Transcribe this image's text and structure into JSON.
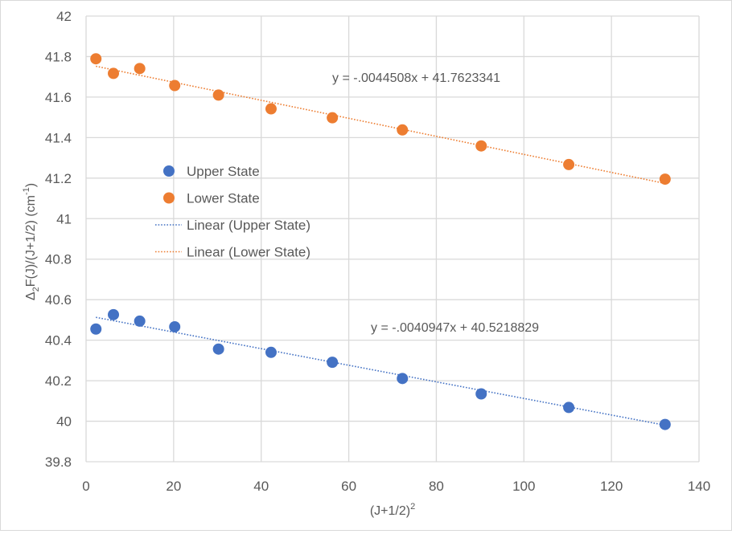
{
  "chart_data": {
    "type": "scatter",
    "xlabel": "(J+1/2)",
    "xlabel_sup": "2",
    "ylabel": "Δ",
    "ylabel_sub": "2",
    "ylabel_main": "F(J)/(J+1/2)  (cm",
    "ylabel_sup": "-1",
    "ylabel_end": ")",
    "xlim": [
      0,
      140
    ],
    "ylim": [
      39.8,
      42
    ],
    "xticks": [
      0,
      20,
      40,
      60,
      80,
      100,
      120,
      140
    ],
    "yticks": [
      39.8,
      40,
      40.2,
      40.4,
      40.6,
      40.8,
      41,
      41.2,
      41.4,
      41.6,
      41.8,
      42
    ],
    "ytick_labels": [
      "39.8",
      "40",
      "40.2",
      "40.4",
      "40.6",
      "40.8",
      "41",
      "41.2",
      "41.4",
      "41.6",
      "41.8",
      "42"
    ],
    "grid": true,
    "legend_placement": "center-left",
    "series": [
      {
        "name": "Upper State",
        "color": "#4472c4",
        "x": [
          2.25,
          6.25,
          12.25,
          20.25,
          30.25,
          42.25,
          56.25,
          72.25,
          90.25,
          110.25,
          132.25
        ],
        "y": [
          40.455,
          40.526,
          40.494,
          40.466,
          40.356,
          40.34,
          40.291,
          40.211,
          40.135,
          40.068,
          39.984
        ],
        "trendline": {
          "name": "Linear (Upper State)",
          "slope": -0.0040947,
          "intercept": 40.5218829,
          "equation": "y = -.0040947x + 40.5218829"
        }
      },
      {
        "name": "Lower State",
        "color": "#ed7d31",
        "x": [
          2.25,
          6.25,
          12.25,
          20.25,
          30.25,
          42.25,
          56.25,
          72.25,
          90.25,
          110.25,
          132.25
        ],
        "y": [
          41.789,
          41.717,
          41.741,
          41.657,
          41.61,
          41.542,
          41.498,
          41.438,
          41.359,
          41.267,
          41.195
        ],
        "trendline": {
          "name": "Linear (Lower State)",
          "slope": -0.0044508,
          "intercept": 41.7623341,
          "equation": "y = -.0044508x + 41.7623341"
        }
      }
    ]
  }
}
